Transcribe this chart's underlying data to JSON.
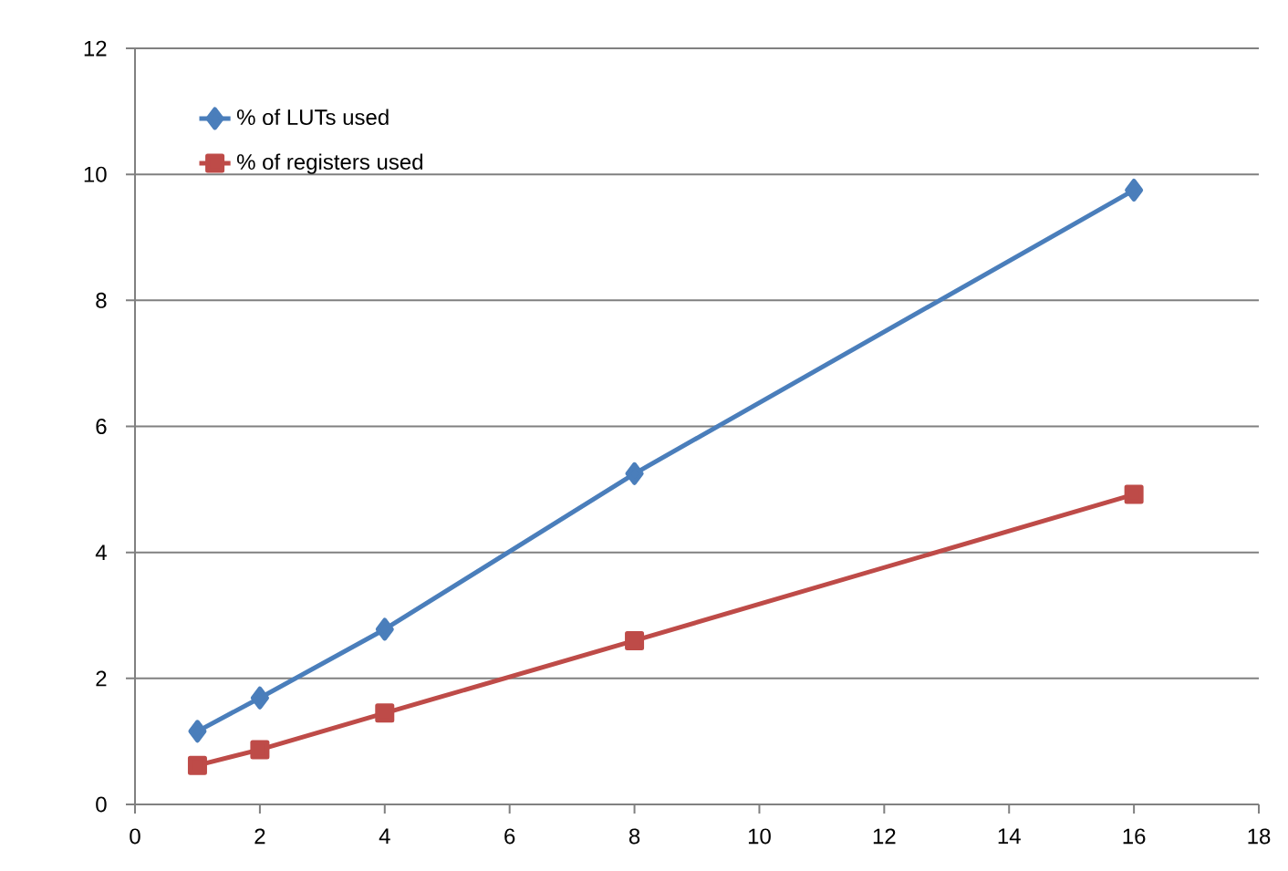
{
  "chart_data": {
    "type": "line",
    "x": [
      1,
      2,
      4,
      8,
      16
    ],
    "series": [
      {
        "name": "% of LUTs used",
        "color": "#4a7ebb",
        "marker": "diamond",
        "values": [
          1.16,
          1.69,
          2.78,
          5.25,
          9.75
        ]
      },
      {
        "name": "% of registers used",
        "color": "#be4b48",
        "marker": "square",
        "values": [
          0.62,
          0.87,
          1.45,
          2.6,
          4.92
        ]
      }
    ],
    "xlim": [
      0,
      18
    ],
    "xticks": [
      0,
      2,
      4,
      6,
      8,
      10,
      12,
      14,
      16,
      18
    ],
    "ylim": [
      0,
      12
    ],
    "yticks": [
      0,
      2,
      4,
      6,
      8,
      10,
      12
    ],
    "grid": "y",
    "legend": "top left",
    "line_style": "solid"
  }
}
